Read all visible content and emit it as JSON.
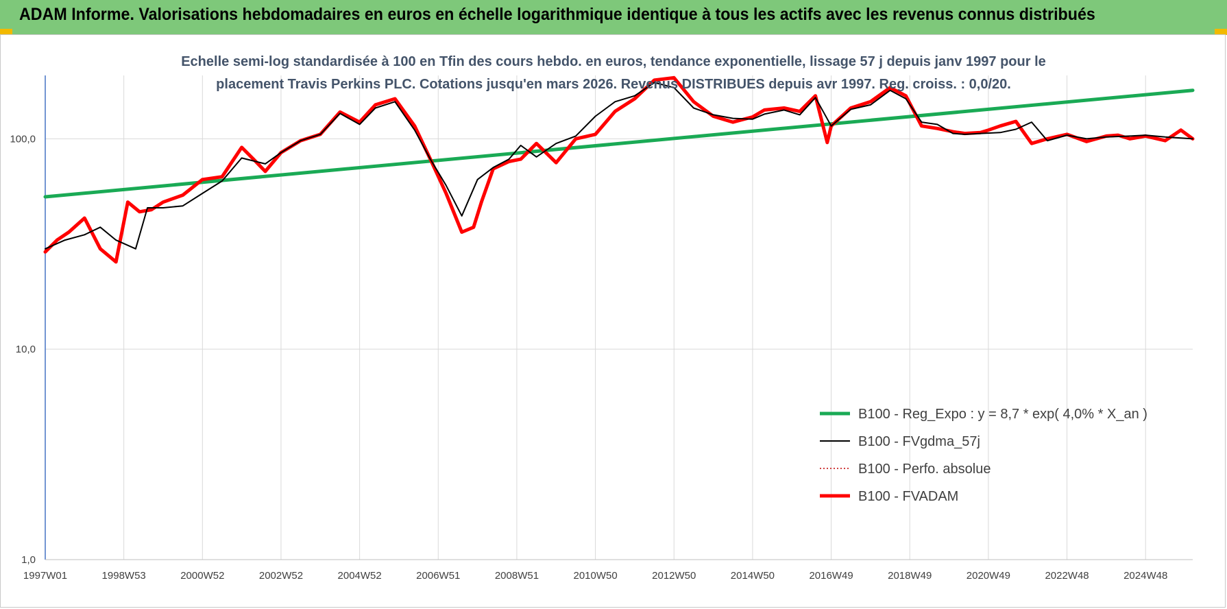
{
  "header": {
    "title": "ADAM Informe. Valorisations hebdomadaires en euros en échelle logarithmique identique à tous les actifs avec les revenus connus distribués"
  },
  "colors": {
    "banner": "#7ec87a",
    "corner_accent": "#f2b900",
    "regression": "#1aaa55",
    "smoothed": "#000000",
    "absolute": "#c00000",
    "fvadam": "#ff0000",
    "subtitle": "#44546a"
  },
  "chart_data": {
    "type": "line",
    "subtitle_lines": [
      "Echelle semi-log standardisée à 100 en Tfin des cours hebdo. en euros, tendance exponentielle, lissage 57 j depuis janv 1997 pour le",
      "placement Travis Perkins PLC. Cotations jusqu'en mars 2026.  Revenus DISTRIBUES depuis avr 1997. Reg. croiss. : 0,0/20."
    ],
    "y_scale": "log",
    "ylim": [
      1,
      200
    ],
    "y_ticks": [
      {
        "value": 1,
        "label": "1,0"
      },
      {
        "value": 10,
        "label": "10,0"
      },
      {
        "value": 100,
        "label": "100,0"
      }
    ],
    "x_range": [
      1997.0,
      2026.2
    ],
    "x_ticks": [
      {
        "x": 1997.0,
        "label": "1997W01"
      },
      {
        "x": 1999.0,
        "label": "1998W53"
      },
      {
        "x": 2001.0,
        "label": "2000W52"
      },
      {
        "x": 2003.0,
        "label": "2002W52"
      },
      {
        "x": 2005.0,
        "label": "2004W52"
      },
      {
        "x": 2007.0,
        "label": "2006W51"
      },
      {
        "x": 2009.0,
        "label": "2008W51"
      },
      {
        "x": 2011.0,
        "label": "2010W50"
      },
      {
        "x": 2013.0,
        "label": "2012W50"
      },
      {
        "x": 2015.0,
        "label": "2014W50"
      },
      {
        "x": 2017.0,
        "label": "2016W49"
      },
      {
        "x": 2019.0,
        "label": "2018W49"
      },
      {
        "x": 2021.0,
        "label": "2020W49"
      },
      {
        "x": 2023.0,
        "label": "2022W48"
      },
      {
        "x": 2025.0,
        "label": "2024W48"
      }
    ],
    "grid": true,
    "legend_position": "bottom-right",
    "series": [
      {
        "name": "B100 - Reg_Expo : y = 8,7 * exp( 4,0% *  X_an )",
        "color": "#1aaa55",
        "style": "solid-thick",
        "x": [
          1997.0,
          2026.2
        ],
        "y": [
          53,
          170
        ]
      },
      {
        "name": "B100 - FVgdma_57j",
        "color": "#000000",
        "style": "solid-thin",
        "x": [
          1997.0,
          1997.5,
          1998.0,
          1998.4,
          1998.8,
          1999.3,
          1999.6,
          2000.0,
          2000.5,
          2001.0,
          2001.5,
          2002.0,
          2002.6,
          2003.0,
          2003.5,
          2004.0,
          2004.5,
          2005.0,
          2005.4,
          2005.9,
          2006.4,
          2006.8,
          2007.2,
          2007.6,
          2008.0,
          2008.4,
          2008.8,
          2009.1,
          2009.5,
          2010.0,
          2010.5,
          2011.0,
          2011.5,
          2012.0,
          2012.5,
          2013.0,
          2013.5,
          2014.0,
          2014.5,
          2015.0,
          2015.3,
          2015.8,
          2016.2,
          2016.6,
          2017.0,
          2017.5,
          2018.0,
          2018.5,
          2018.9,
          2019.3,
          2019.7,
          2020.1,
          2020.4,
          2020.8,
          2021.3,
          2021.7,
          2022.1,
          2022.5,
          2023.0,
          2023.5,
          2024.0,
          2024.6,
          2025.0,
          2025.5,
          2026.2
        ],
        "y": [
          30,
          33,
          35,
          38,
          33,
          30,
          47,
          47,
          48,
          55,
          63,
          81,
          76,
          86,
          98,
          105,
          132,
          117,
          140,
          150,
          110,
          80,
          60,
          43,
          64,
          73,
          80,
          93,
          82,
          95,
          103,
          128,
          150,
          160,
          185,
          175,
          140,
          130,
          125,
          124,
          131,
          137,
          130,
          157,
          115,
          138,
          145,
          170,
          155,
          120,
          117,
          106,
          105,
          106,
          107,
          111,
          120,
          98,
          104,
          100,
          102,
          103,
          104,
          102,
          100
        ]
      },
      {
        "name": "B100 - Perfo. absolue",
        "color": "#c00000",
        "style": "dotted",
        "x": [],
        "y": []
      },
      {
        "name": "B100 - FVADAM",
        "color": "#ff0000",
        "style": "solid-thick",
        "x": [
          1997.0,
          1997.3,
          1997.6,
          1998.0,
          1998.4,
          1998.8,
          1999.1,
          1999.4,
          1999.7,
          2000.0,
          2000.5,
          2001.0,
          2001.5,
          2002.0,
          2002.3,
          2002.6,
          2003.0,
          2003.5,
          2004.0,
          2004.5,
          2005.0,
          2005.4,
          2005.9,
          2006.4,
          2006.8,
          2007.2,
          2007.6,
          2007.9,
          2008.1,
          2008.4,
          2008.8,
          2009.1,
          2009.5,
          2010.0,
          2010.5,
          2011.0,
          2011.5,
          2012.0,
          2012.5,
          2013.0,
          2013.5,
          2014.0,
          2014.5,
          2015.0,
          2015.3,
          2015.8,
          2016.2,
          2016.6,
          2016.9,
          2017.0,
          2017.5,
          2018.0,
          2018.5,
          2018.9,
          2019.3,
          2019.7,
          2020.1,
          2020.4,
          2020.8,
          2021.0,
          2021.3,
          2021.7,
          2022.1,
          2022.5,
          2023.0,
          2023.5,
          2024.0,
          2024.3,
          2024.6,
          2025.0,
          2025.5,
          2025.9,
          2026.2
        ],
        "y": [
          29,
          33,
          36,
          42,
          30,
          26,
          50,
          45,
          46,
          50,
          54,
          64,
          66,
          91,
          80,
          70,
          86,
          98,
          105,
          134,
          120,
          145,
          155,
          115,
          80,
          55,
          36,
          38,
          50,
          72,
          78,
          80,
          95,
          77,
          100,
          105,
          135,
          155,
          190,
          195,
          150,
          128,
          120,
          127,
          137,
          140,
          135,
          160,
          96,
          115,
          140,
          150,
          175,
          160,
          115,
          112,
          108,
          106,
          107,
          110,
          115,
          121,
          95,
          100,
          105,
          97,
          103,
          104,
          100,
          103,
          98,
          110,
          100
        ]
      }
    ]
  }
}
